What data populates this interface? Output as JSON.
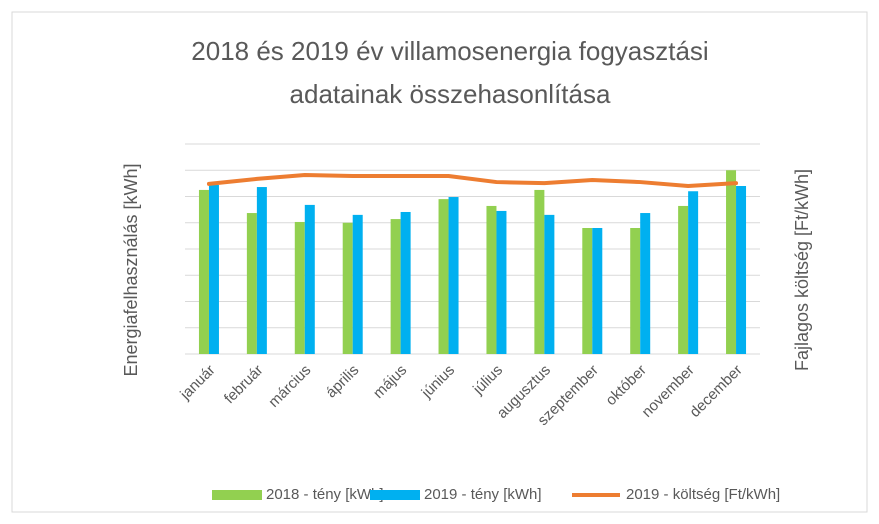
{
  "chart_data": {
    "type": "bar",
    "title": "2018 és 2019 év villamosenergia fogyasztási adatainak összehasonlítása",
    "y_label": "Energiafelhasználás [kWh]",
    "y2_label": "Fajlagos költség [Ft/kWh]",
    "categories": [
      "január",
      "február",
      "március",
      "április",
      "május",
      "június",
      "július",
      "augusztus",
      "szeptember",
      "október",
      "november",
      "december"
    ],
    "series": [
      {
        "name": "2018 - tény [kWh]",
        "type": "bar",
        "color": "#92d050",
        "values": [
          6.25,
          5.37,
          5.03,
          5.0,
          5.14,
          5.9,
          5.64,
          6.25,
          4.8,
          4.8,
          5.64,
          7.0
        ]
      },
      {
        "name": "2019 - tény [kWh]",
        "type": "bar",
        "color": "#00b0f0",
        "values": [
          6.44,
          6.36,
          5.68,
          5.3,
          5.41,
          5.98,
          5.45,
          5.3,
          4.8,
          5.37,
          6.2,
          6.4
        ]
      },
      {
        "name": "2019 - költség [Ft/kWh]",
        "type": "line",
        "axis": "y2",
        "color": "#ed7d31",
        "values": [
          6.48,
          6.67,
          6.82,
          6.78,
          6.78,
          6.78,
          6.55,
          6.51,
          6.63,
          6.55,
          6.4,
          6.51
        ]
      }
    ],
    "ylim": [
      0,
      8
    ],
    "yticks": [
      0,
      1,
      2,
      3,
      4,
      5,
      6,
      7,
      8
    ],
    "y2lim": [
      0,
      8
    ],
    "grid": true
  }
}
